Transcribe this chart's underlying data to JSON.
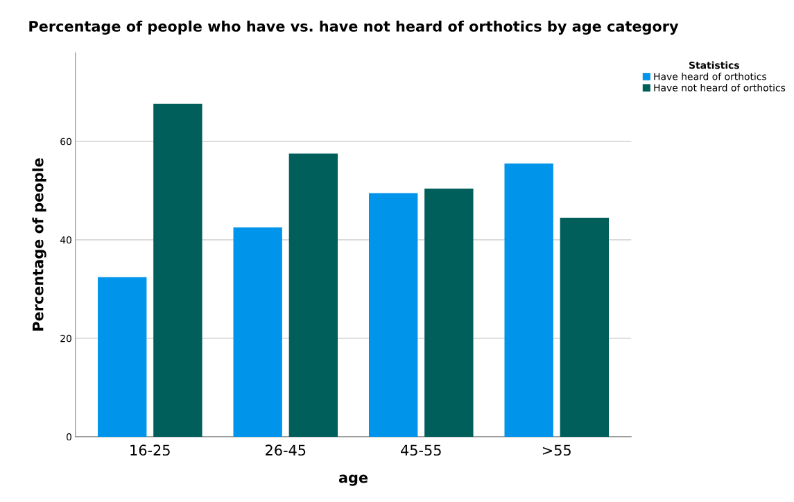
{
  "chart_data": {
    "type": "bar",
    "title": "Percentage of people who have vs. have not heard of orthotics by age category",
    "xlabel": "age",
    "ylabel": "Percentage of people",
    "legend_title": "Statistics",
    "categories": [
      "16-25",
      "26-45",
      "45-55",
      ">55"
    ],
    "series": [
      {
        "name": "Have heard of orthotics",
        "color": "#0094ea",
        "values": [
          32.4,
          42.5,
          49.5,
          55.5
        ]
      },
      {
        "name": "Have not heard of orthotics",
        "color": "#005f5b",
        "values": [
          67.6,
          57.5,
          50.4,
          44.5
        ]
      }
    ],
    "ylim": [
      0,
      78
    ],
    "yticks": [
      0,
      20,
      40,
      60
    ],
    "grid": "y",
    "legend": "right"
  }
}
